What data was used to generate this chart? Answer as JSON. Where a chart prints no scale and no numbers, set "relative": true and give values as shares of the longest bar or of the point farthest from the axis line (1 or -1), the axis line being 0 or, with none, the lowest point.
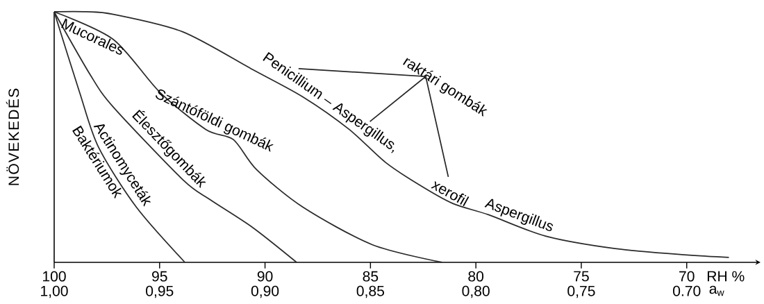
{
  "chart_data": {
    "type": "line",
    "relative": true,
    "ylabel": "NÖVEKEDÉS",
    "xlabel": "RH %",
    "x2label": "a$_{w}$",
    "xlim": [
      100,
      66.5
    ],
    "xticks": [
      100,
      95,
      90,
      85,
      80,
      75,
      70
    ],
    "x2lim": [
      1.0,
      0.665
    ],
    "x2ticks": [
      {
        "value": 1.0,
        "label": "1,00"
      },
      {
        "value": 0.95,
        "label": "0,95"
      },
      {
        "value": 0.9,
        "label": "0,90"
      },
      {
        "value": 0.85,
        "label": "0,85"
      },
      {
        "value": 0.8,
        "label": "0,80"
      },
      {
        "value": 0.75,
        "label": "0,75"
      },
      {
        "value": 0.7,
        "label": "0.70"
      }
    ],
    "grid": false,
    "legend": false,
    "marker": "none",
    "line_style": "solid",
    "series": [
      {
        "name": "Actinomyceták",
        "color": "#2b2b2b",
        "x": [
          100,
          98.8,
          97.9,
          96.1,
          93.8
        ],
        "values": [
          1,
          0.68,
          0.46,
          0.22,
          0
        ]
      },
      {
        "name": "Élesztőgombák",
        "color": "#2b2b2b",
        "x": [
          100,
          98.3,
          97.2,
          93.9,
          92.6,
          90.6,
          88.5
        ],
        "values": [
          1,
          0.75,
          0.62,
          0.33,
          0.25,
          0.14,
          0
        ]
      },
      {
        "name": "Szántóföldi gombák",
        "color": "#2b2b2b",
        "x": [
          100,
          97.2,
          95.0,
          92.8,
          91.5,
          90.4,
          88.2,
          84.9,
          81.6
        ],
        "values": [
          1,
          0.89,
          0.68,
          0.53,
          0.49,
          0.37,
          0.22,
          0.07,
          0
        ]
      },
      {
        "name": "Penicillium – Aspergillus,",
        "color": "#2b2b2b",
        "x": [
          100,
          98.5,
          97.2,
          93.9,
          90.6,
          88.2,
          86.0,
          84.3,
          82.7,
          81.1,
          79.4,
          76.7,
          73.4,
          70.1,
          68.0
        ],
        "values": [
          1,
          1,
          0.99,
          0.92,
          0.77,
          0.66,
          0.53,
          0.4,
          0.31,
          0.235,
          0.19,
          0.105,
          0.055,
          0.03,
          0.02
        ]
      }
    ],
    "annotations": [
      {
        "text": "Baktériumok",
        "x": 97.6,
        "y": 0.42
      },
      {
        "text": "Mucorales",
        "x": 98.0,
        "y": 0.93
      },
      {
        "text": "xerofil",
        "x": 81.4,
        "y": 0.25
      },
      {
        "text": "Aspergillus",
        "x": 78.1,
        "y": 0.15
      },
      "raktári gombák"
    ]
  }
}
